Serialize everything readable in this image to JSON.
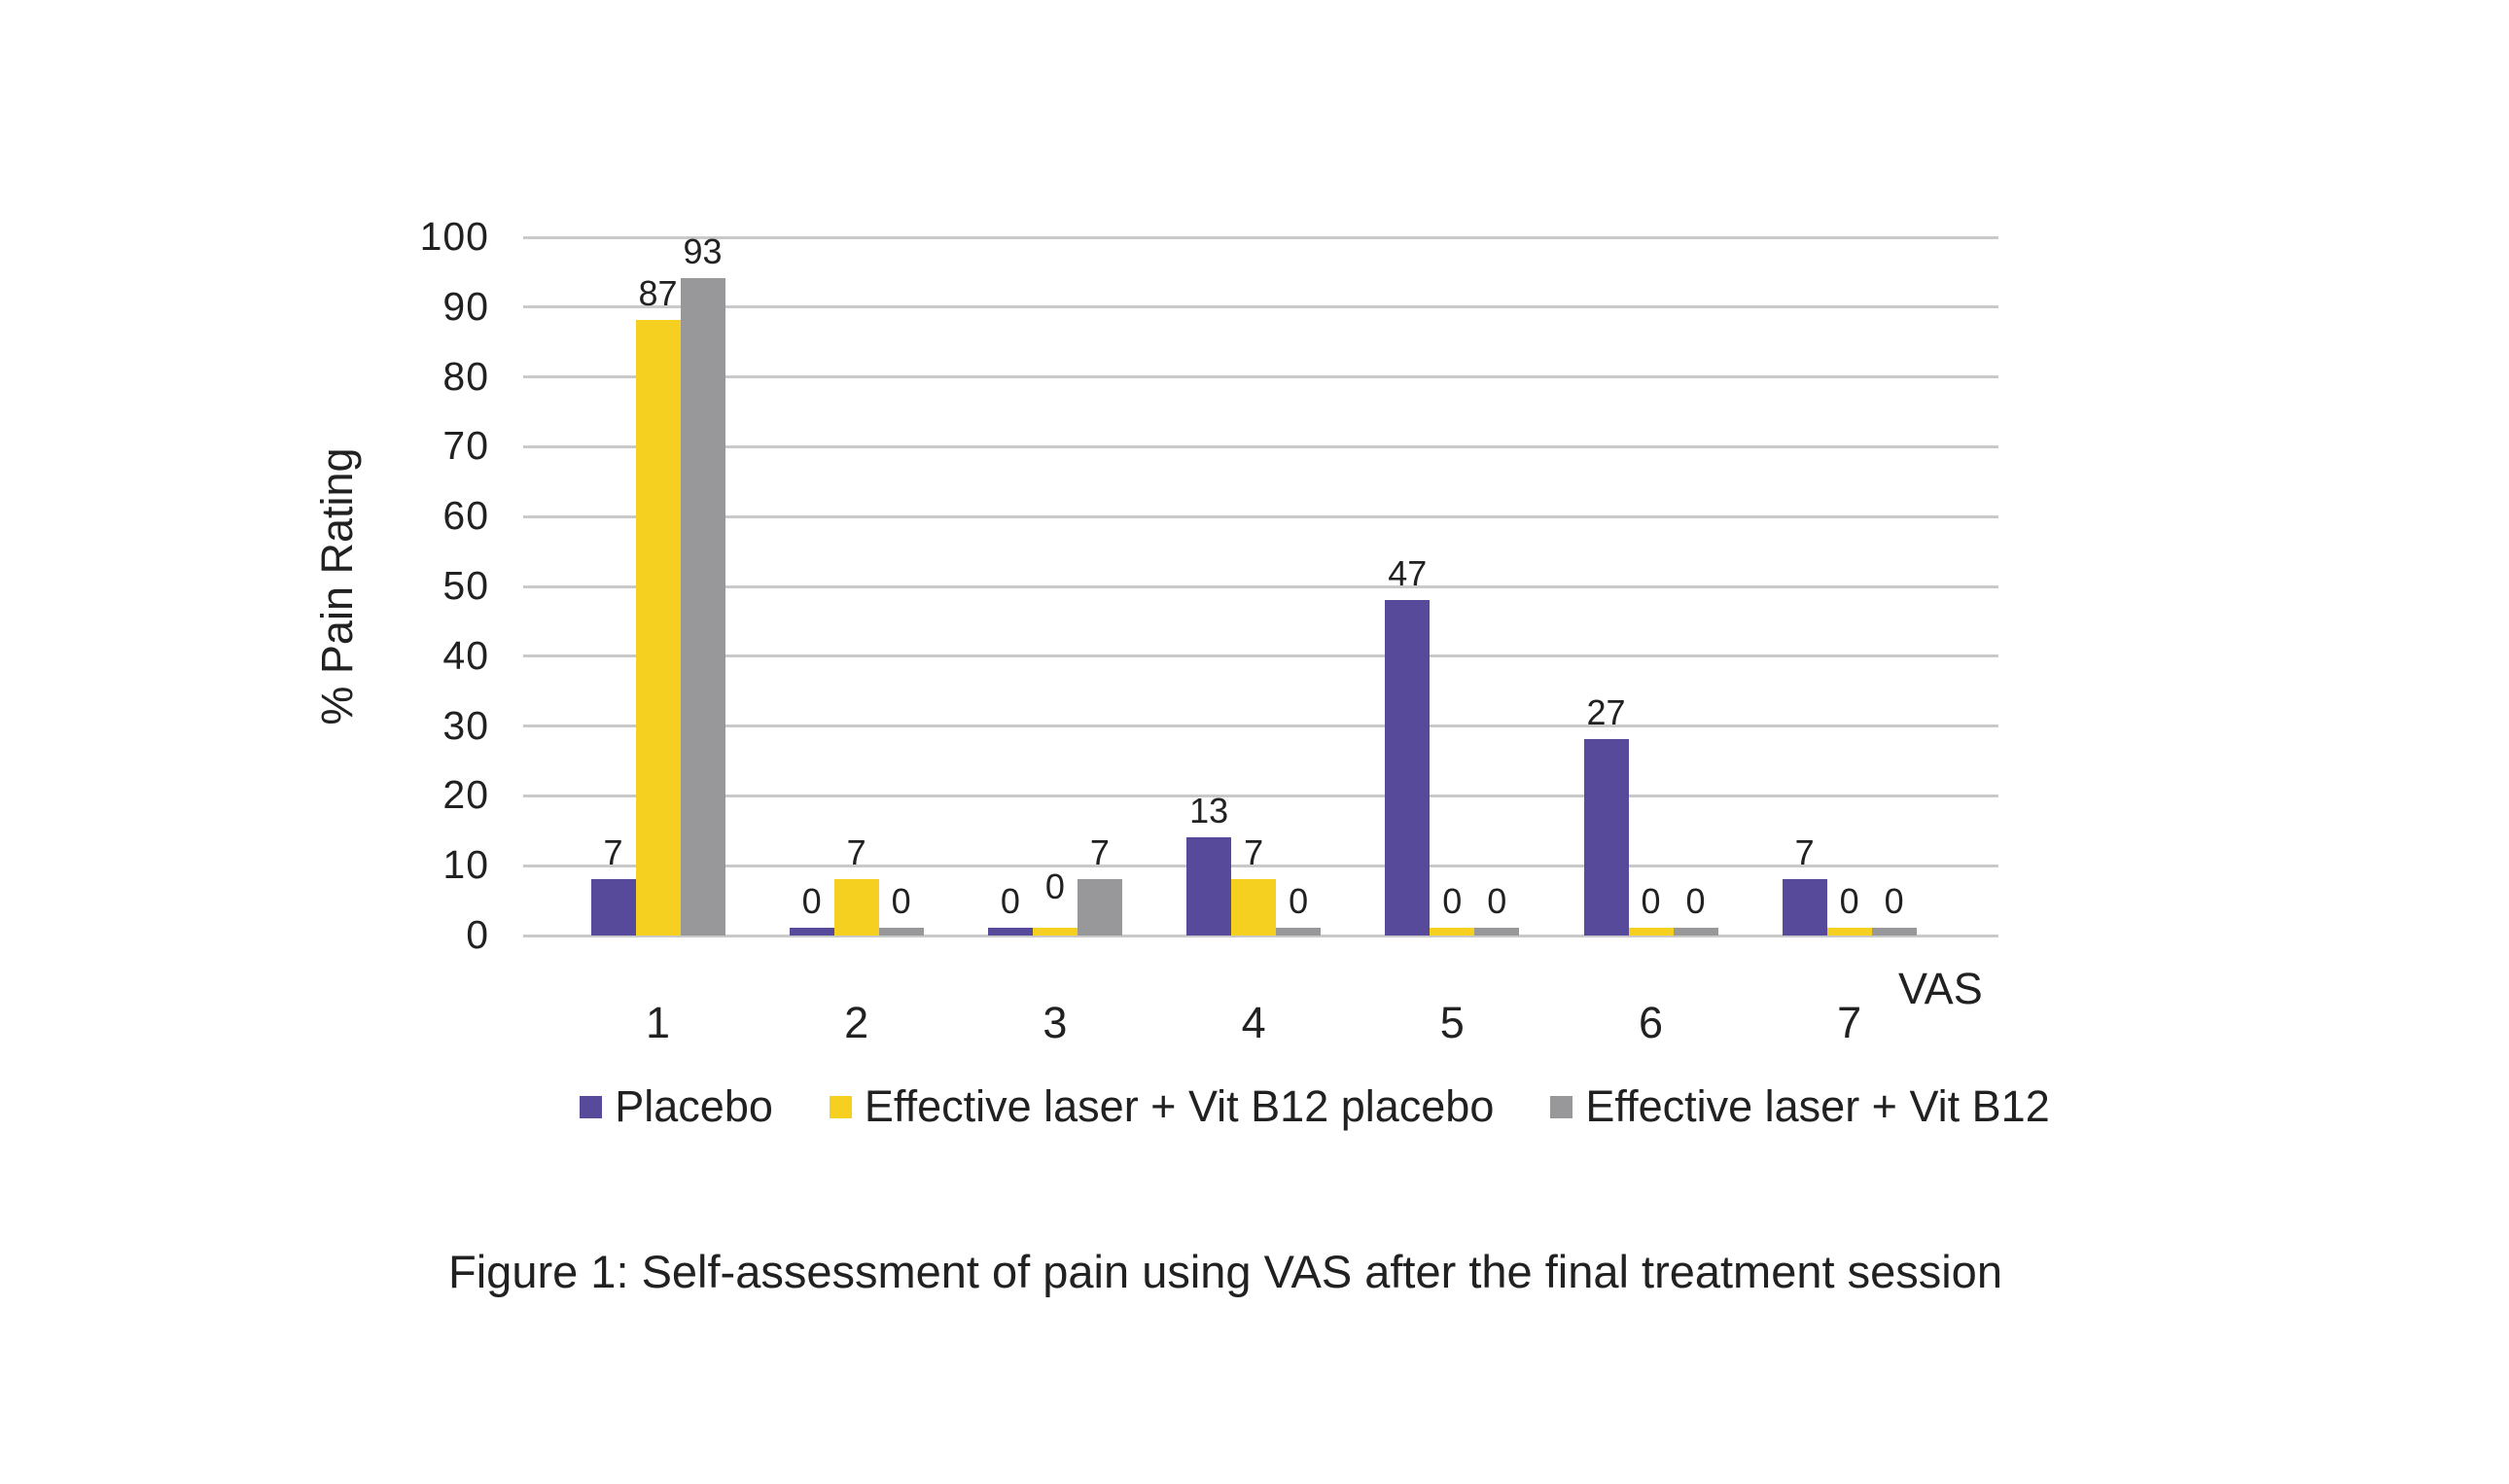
{
  "figure": {
    "caption": "Figure 1: Self-assessment of pain using VAS after the final treatment session"
  },
  "chart_data": {
    "type": "bar",
    "title": "",
    "ylabel": "% Pain Rating",
    "x_axis_unit_label": "VAS",
    "categories": [
      "1",
      "2",
      "3",
      "4",
      "5",
      "6",
      "7"
    ],
    "series": [
      {
        "name": "Placebo",
        "color": "#584a9b",
        "values": [
          7,
          0,
          0,
          13,
          47,
          27,
          7
        ]
      },
      {
        "name": "Effective laser + Vit B12 placebo",
        "color": "#f5d021",
        "values": [
          87,
          7,
          0,
          7,
          0,
          0,
          0
        ]
      },
      {
        "name": "Effective laser + Vit B12",
        "color": "#98989b",
        "values": [
          93,
          0,
          7,
          0,
          0,
          0,
          0
        ]
      }
    ],
    "yticks": [
      0,
      10,
      20,
      30,
      40,
      50,
      60,
      70,
      80,
      90,
      100
    ],
    "ylim": [
      0,
      100
    ],
    "grid": true,
    "gridline_color": "#c9c9c9",
    "data_labels": true,
    "legend_position": "bottom",
    "label_offset_hints": [
      {
        "series": 1,
        "category_index": 2,
        "dy": -15
      }
    ]
  }
}
